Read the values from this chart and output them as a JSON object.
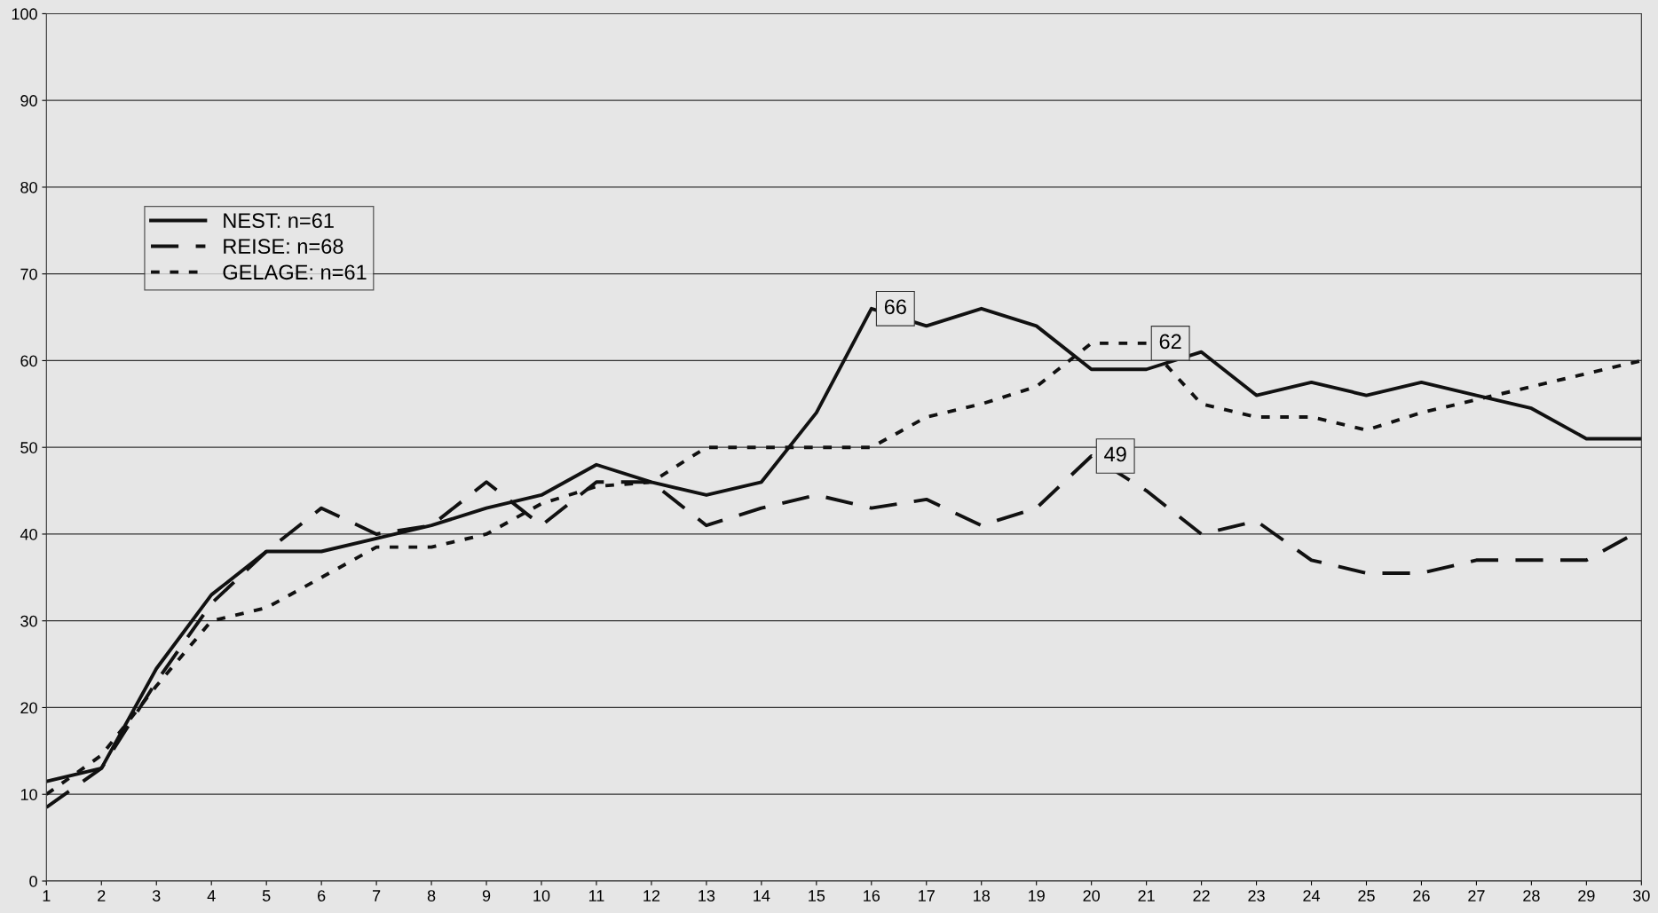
{
  "chart_data": {
    "type": "line",
    "x": [
      1,
      2,
      3,
      4,
      5,
      6,
      7,
      8,
      9,
      10,
      11,
      12,
      13,
      14,
      15,
      16,
      17,
      18,
      19,
      20,
      21,
      22,
      23,
      24,
      25,
      26,
      27,
      28,
      29,
      30
    ],
    "series": [
      {
        "name": "NEST: n=61",
        "color": "#111111",
        "line_style": "solid",
        "values": [
          11.5,
          13,
          24.5,
          33,
          38,
          38,
          39.5,
          41,
          43,
          44.5,
          48,
          46,
          44.5,
          46,
          54,
          66,
          64,
          66,
          64,
          59,
          59,
          61,
          56,
          57.5,
          56,
          57.5,
          56,
          54.5,
          51,
          51
        ]
      },
      {
        "name": "REISE: n=68",
        "color": "#111111",
        "line_style": "dashed",
        "values": [
          8.5,
          13,
          23,
          32,
          38,
          43,
          40,
          41,
          46,
          41,
          46,
          46,
          41,
          43,
          44.5,
          43,
          44,
          41,
          43,
          49,
          45,
          40,
          41.5,
          37,
          35.5,
          35.5,
          37,
          37,
          37,
          40.5
        ]
      },
      {
        "name": "GELAGE: n=61",
        "color": "#111111",
        "line_style": "dotted",
        "values": [
          10,
          14.5,
          22.5,
          30,
          31.5,
          35,
          38.5,
          38.5,
          40,
          43.5,
          45.5,
          46,
          50,
          50,
          50,
          50,
          53.5,
          55,
          57,
          62,
          62,
          55,
          53.5,
          53.5,
          52,
          54,
          55.5,
          57,
          58.5,
          60
        ]
      }
    ],
    "annotations": [
      {
        "text": "66",
        "x": 16,
        "y": 66
      },
      {
        "text": "62",
        "x": 21,
        "y": 62
      },
      {
        "text": "49",
        "x": 20,
        "y": 49
      }
    ],
    "xlim": [
      1,
      30
    ],
    "xticks": [
      1,
      2,
      3,
      4,
      5,
      6,
      7,
      8,
      9,
      10,
      11,
      12,
      13,
      14,
      15,
      16,
      17,
      18,
      19,
      20,
      21,
      22,
      23,
      24,
      25,
      26,
      27,
      28,
      29,
      30
    ],
    "ylim": [
      0,
      100
    ],
    "yticks": [
      0,
      10,
      20,
      30,
      40,
      50,
      60,
      70,
      80,
      90,
      100
    ],
    "grid": "y",
    "legend": "top left",
    "marker": "none"
  }
}
